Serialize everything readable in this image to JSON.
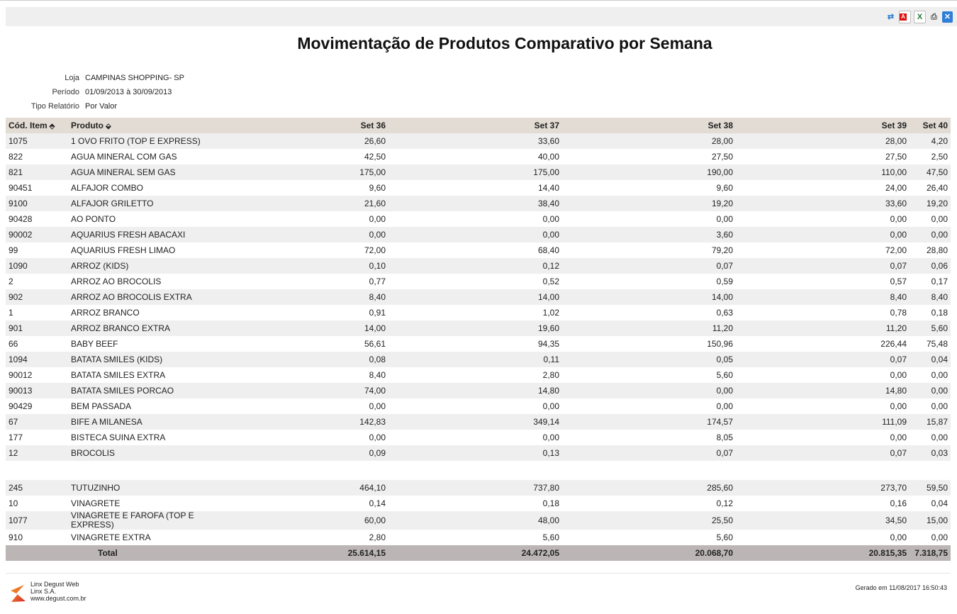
{
  "toolbar": {
    "icons": [
      "refresh-icon",
      "pdf-icon",
      "excel-icon",
      "print-icon",
      "close-icon"
    ]
  },
  "title": "Movimentação de Produtos Comparativo por Semana",
  "meta": [
    {
      "label": "Loja",
      "value": "CAMPINAS SHOPPING- SP"
    },
    {
      "label": "Período",
      "value": "01/09/2013 à 30/09/2013"
    },
    {
      "label": "Tipo Relatório",
      "value": "Por Valor"
    }
  ],
  "columns": [
    "Cód. Item",
    "Produto",
    "Set 36",
    "Set 37",
    "Set 38",
    "Set 39",
    "Set 40"
  ],
  "rows": [
    [
      "1075",
      "1 OVO FRITO (TOP E EXPRESS)",
      "26,60",
      "33,60",
      "28,00",
      "28,00",
      "4,20"
    ],
    [
      "822",
      "AGUA MINERAL COM GAS",
      "42,50",
      "40,00",
      "27,50",
      "27,50",
      "2,50"
    ],
    [
      "821",
      "AGUA MINERAL SEM GAS",
      "175,00",
      "175,00",
      "190,00",
      "110,00",
      "47,50"
    ],
    [
      "90451",
      "ALFAJOR COMBO",
      "9,60",
      "14,40",
      "9,60",
      "24,00",
      "26,40"
    ],
    [
      "9100",
      "ALFAJOR GRILETTO",
      "21,60",
      "38,40",
      "19,20",
      "33,60",
      "19,20"
    ],
    [
      "90428",
      "AO PONTO",
      "0,00",
      "0,00",
      "0,00",
      "0,00",
      "0,00"
    ],
    [
      "90002",
      "AQUARIUS FRESH ABACAXI",
      "0,00",
      "0,00",
      "3,60",
      "0,00",
      "0,00"
    ],
    [
      "99",
      "AQUARIUS FRESH LIMAO",
      "72,00",
      "68,40",
      "79,20",
      "72,00",
      "28,80"
    ],
    [
      "1090",
      "ARROZ (KIDS)",
      "0,10",
      "0,12",
      "0,07",
      "0,07",
      "0,06"
    ],
    [
      "2",
      "ARROZ AO BROCOLIS",
      "0,77",
      "0,52",
      "0,59",
      "0,57",
      "0,17"
    ],
    [
      "902",
      "ARROZ AO BROCOLIS EXTRA",
      "8,40",
      "14,00",
      "14,00",
      "8,40",
      "8,40"
    ],
    [
      "1",
      "ARROZ BRANCO",
      "0,91",
      "1,02",
      "0,63",
      "0,78",
      "0,18"
    ],
    [
      "901",
      "ARROZ BRANCO EXTRA",
      "14,00",
      "19,60",
      "11,20",
      "11,20",
      "5,60"
    ],
    [
      "66",
      "BABY BEEF",
      "56,61",
      "94,35",
      "150,96",
      "226,44",
      "75,48"
    ],
    [
      "1094",
      "BATATA SMILES (KIDS)",
      "0,08",
      "0,11",
      "0,05",
      "0,07",
      "0,04"
    ],
    [
      "90012",
      "BATATA SMILES EXTRA",
      "8,40",
      "2,80",
      "5,60",
      "0,00",
      "0,00"
    ],
    [
      "90013",
      "BATATA SMILES PORCAO",
      "74,00",
      "14,80",
      "0,00",
      "14,80",
      "0,00"
    ],
    [
      "90429",
      "BEM PASSADA",
      "0,00",
      "0,00",
      "0,00",
      "0,00",
      "0,00"
    ],
    [
      "67",
      "BIFE A MILANESA",
      "142,83",
      "349,14",
      "174,57",
      "111,09",
      "15,87"
    ],
    [
      "177",
      "BISTECA SUINA EXTRA",
      "0,00",
      "0,00",
      "8,05",
      "0,00",
      "0,00"
    ],
    [
      "12",
      "BROCOLIS",
      "0,09",
      "0,13",
      "0,07",
      "0,07",
      "0,03"
    ]
  ],
  "rows_after_gap": [
    [
      "245",
      "TUTUZINHO",
      "464,10",
      "737,80",
      "285,60",
      "273,70",
      "59,50"
    ],
    [
      "10",
      "VINAGRETE",
      "0,14",
      "0,18",
      "0,12",
      "0,16",
      "0,04"
    ],
    [
      "1077",
      "VINAGRETE E FAROFA (TOP E EXPRESS)",
      "60,00",
      "48,00",
      "25,50",
      "34,50",
      "15,00"
    ],
    [
      "910",
      "VINAGRETE EXTRA",
      "2,80",
      "5,60",
      "5,60",
      "0,00",
      "0,00"
    ]
  ],
  "total": {
    "label": "Total",
    "values": [
      "25.614,15",
      "24.472,05",
      "20.068,70",
      "20.815,35",
      "7.318,75"
    ]
  },
  "footer": {
    "brand": [
      "Linx Degust Web",
      "Linx S.A.",
      "www.degust.com.br"
    ],
    "generated": "Gerado em 11/08/2017 16:50:43"
  }
}
